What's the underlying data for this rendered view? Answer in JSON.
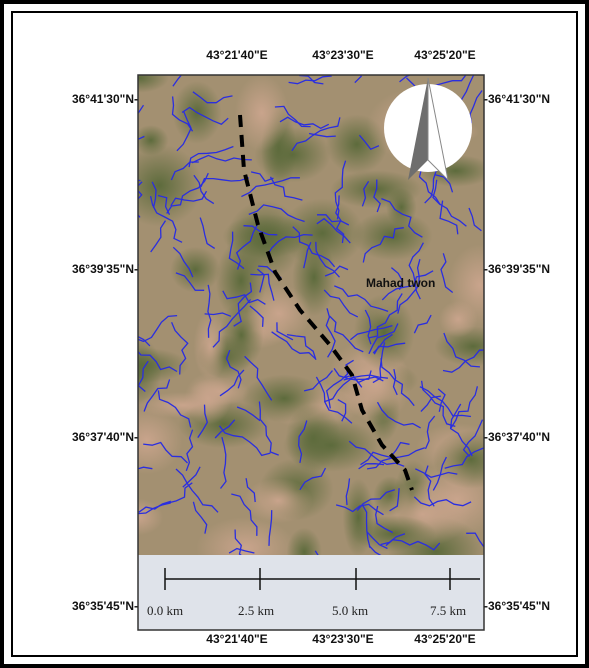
{
  "map": {
    "top_labels": [
      "43°21'40\"E",
      "43°23'30\"E",
      "43°25'20\"E"
    ],
    "bottom_labels": [
      "43°21'40\"E",
      "43°23'30\"E",
      "43°25'20\"E"
    ],
    "left_labels": [
      "36°41'30\"N-",
      "36°39'35\"N-",
      "36°37'40\"N-",
      "36°35'45\"N-"
    ],
    "right_labels": [
      "-36°41'30\"N",
      "-36°39'35\"N",
      "-36°37'40\"N",
      "-36°35'45\"N"
    ],
    "place_label": "Mahad  twon",
    "scale_labels": [
      "0.0 km",
      "2.5 km",
      "5.0 km",
      "7.5 km"
    ]
  }
}
